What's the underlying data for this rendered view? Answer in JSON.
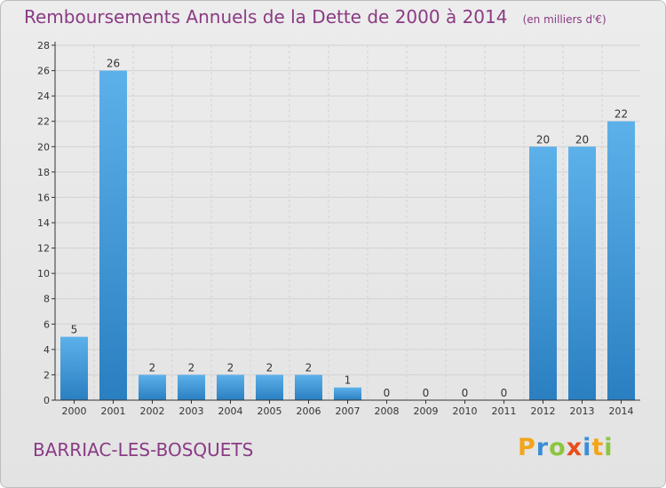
{
  "title": "Remboursements Annuels de la Dette de 2000 à 2014",
  "subtitle": "(en milliers d'€)",
  "place_name": "BARRIAC-LES-BOSQUETS",
  "logo": {
    "text": "Proxiti",
    "letters": [
      {
        "char": "P",
        "color": "#f2a51a"
      },
      {
        "char": "r",
        "color": "#3a8ed6"
      },
      {
        "char": "o",
        "color": "#8cc63f"
      },
      {
        "char": "x",
        "color": "#e94e1b"
      },
      {
        "char": "i",
        "color": "#3a8ed6"
      },
      {
        "char": "t",
        "color": "#f2a51a"
      },
      {
        "char": "i",
        "color": "#8cc63f"
      }
    ]
  },
  "colors": {
    "title": "#8a3b84",
    "bar_top": "#5db1ea",
    "bar_bottom": "#2a7fc1",
    "grid": "#d2d2d2",
    "axis": "#333333"
  },
  "chart_data": {
    "type": "bar",
    "categories": [
      "2000",
      "2001",
      "2002",
      "2003",
      "2004",
      "2005",
      "2006",
      "2007",
      "2008",
      "2009",
      "2010",
      "2011",
      "2012",
      "2013",
      "2014"
    ],
    "values": [
      5,
      26,
      2,
      2,
      2,
      2,
      2,
      1,
      0,
      0,
      0,
      0,
      20,
      20,
      22
    ],
    "ylim": [
      0,
      28
    ],
    "yticks": [
      0,
      2,
      4,
      6,
      8,
      10,
      12,
      14,
      16,
      18,
      20,
      22,
      24,
      26,
      28
    ],
    "grid": true,
    "legend": "none"
  }
}
